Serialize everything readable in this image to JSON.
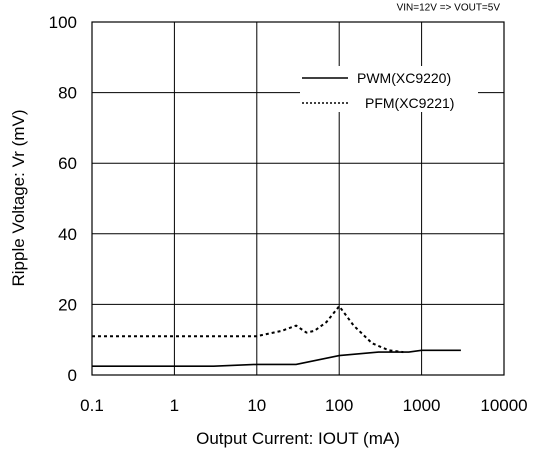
{
  "chart_data": {
    "type": "line",
    "condition_text": "VIN=12V => VOUT=5V",
    "xlabel": "Output Current: IOUT (mA)",
    "ylabel": "Ripple Voltage: Vr (mV)",
    "xscale": "log",
    "xlim": [
      0.1,
      10000
    ],
    "ylim": [
      0,
      100
    ],
    "x_ticks": [
      0.1,
      1,
      10,
      100,
      1000,
      10000
    ],
    "x_tick_labels": [
      "0.1",
      "1",
      "10",
      "100",
      "1000",
      "10000"
    ],
    "y_ticks": [
      0,
      20,
      40,
      60,
      80,
      100
    ],
    "y_tick_labels": [
      "0",
      "20",
      "40",
      "60",
      "80",
      "100"
    ],
    "grid": true,
    "legend_position": "top-right",
    "series": [
      {
        "name": "PWM(XC9220)",
        "style": "solid",
        "points": [
          [
            0.1,
            2.5
          ],
          [
            3,
            2.5
          ],
          [
            10,
            3
          ],
          [
            30,
            3
          ],
          [
            100,
            5.5
          ],
          [
            300,
            6.5
          ],
          [
            700,
            6.5
          ],
          [
            1000,
            7
          ],
          [
            3000,
            7
          ]
        ]
      },
      {
        "name": "PFM(XC9221)",
        "style": "dotted",
        "points": [
          [
            0.1,
            11
          ],
          [
            10,
            11
          ],
          [
            20,
            12.5
          ],
          [
            30,
            14
          ],
          [
            40,
            12
          ],
          [
            50,
            12.5
          ],
          [
            70,
            15
          ],
          [
            100,
            19.5
          ],
          [
            150,
            14
          ],
          [
            250,
            9
          ],
          [
            400,
            7
          ],
          [
            600,
            6.5
          ]
        ]
      }
    ]
  }
}
